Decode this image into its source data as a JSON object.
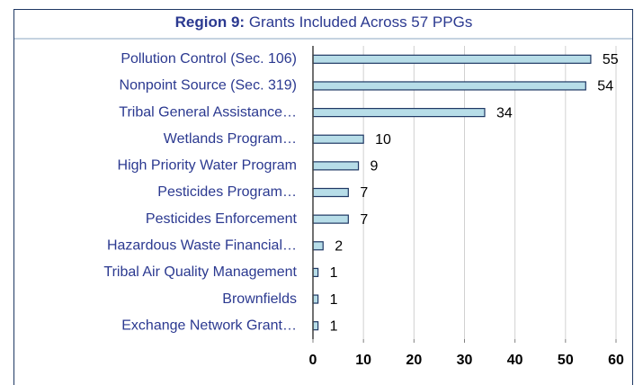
{
  "chart_data": {
    "type": "bar",
    "orientation": "horizontal",
    "title": {
      "prefix": "Region 9:",
      "text": "Grants Included Across 57 PPGs"
    },
    "categories": [
      "Pollution Control (Sec. 106)",
      "Nonpoint Source (Sec. 319)",
      "Tribal General Assistance…",
      "Wetlands Program…",
      "High Priority Water Program",
      "Pesticides Program…",
      "Pesticides Enforcement",
      "Hazardous Waste Financial…",
      "Tribal Air Quality Management",
      "Brownfields",
      "Exchange Network Grant…"
    ],
    "values": [
      55,
      54,
      34,
      10,
      9,
      7,
      7,
      2,
      1,
      1,
      1
    ],
    "color": "#b7dde8",
    "edge_color": "#1f3864",
    "xlim": [
      0,
      60
    ],
    "xticks": [
      0,
      10,
      20,
      30,
      40,
      50,
      60
    ],
    "grid": true
  }
}
